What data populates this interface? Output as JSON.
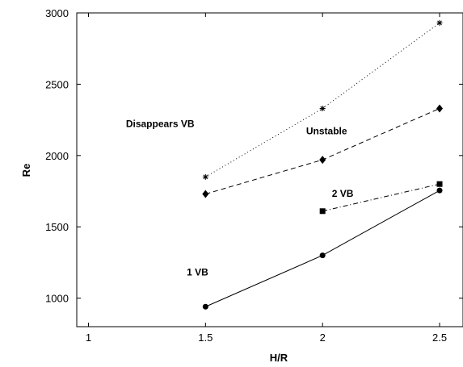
{
  "chart_data": {
    "type": "line",
    "xlabel": "H/R",
    "ylabel": "Re",
    "xlim": [
      0.95,
      2.6
    ],
    "ylim": [
      800,
      3000
    ],
    "xticks": [
      1,
      1.5,
      2,
      2.5
    ],
    "xtick_labels": [
      "1",
      "1.5",
      "2",
      "2.5"
    ],
    "yticks": [
      1000,
      1500,
      2000,
      2500,
      3000
    ],
    "ytick_labels": [
      "1000",
      "1500",
      "2000",
      "2500",
      "3000"
    ],
    "grid": false,
    "series": [
      {
        "key": "disappears",
        "line_style": "dotted",
        "marker": "star",
        "x": [
          1.5,
          2,
          2.5
        ],
        "y": [
          1850,
          2330,
          2930
        ]
      },
      {
        "key": "unstable",
        "line_style": "dashed",
        "marker": "diamond",
        "x": [
          1.5,
          2,
          2.5
        ],
        "y": [
          1730,
          1970,
          2330
        ]
      },
      {
        "key": "two-vb",
        "line_style": "dashdot",
        "marker": "square",
        "x": [
          2,
          2.5
        ],
        "y": [
          1610,
          1800
        ]
      },
      {
        "key": "one-vb",
        "line_style": "solid",
        "marker": "circle",
        "x": [
          1.5,
          2,
          2.5
        ],
        "y": [
          940,
          1300,
          1755
        ]
      }
    ],
    "annotations": [
      {
        "text": "Disappears VB",
        "x": 1.16,
        "y": 2200
      },
      {
        "text": "Unstable",
        "x": 1.93,
        "y": 2150
      },
      {
        "text": "2 VB",
        "x": 2.04,
        "y": 1710
      },
      {
        "text": "1 VB",
        "x": 1.42,
        "y": 1160
      }
    ]
  }
}
